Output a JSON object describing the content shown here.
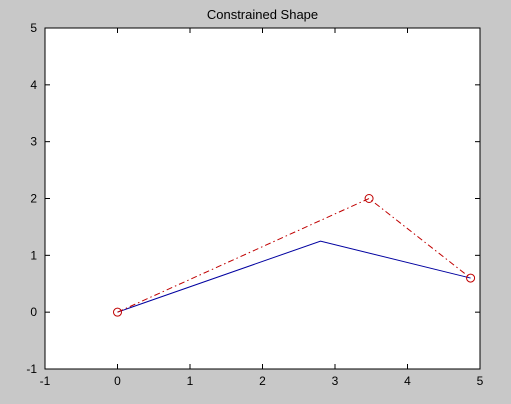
{
  "chart_data": {
    "type": "line",
    "title": "Constrained Shape",
    "xlabel": "",
    "ylabel": "",
    "xlim": [
      -1,
      5
    ],
    "ylim": [
      -1,
      5
    ],
    "xticks": [
      -1,
      0,
      1,
      2,
      3,
      4,
      5
    ],
    "yticks": [
      -1,
      0,
      1,
      2,
      3,
      4,
      5
    ],
    "grid": false,
    "legend": "none",
    "series": [
      {
        "style": "solid",
        "color": "#0000a0",
        "marker": "none",
        "x": [
          0,
          2.8,
          4.87
        ],
        "y": [
          0,
          1.25,
          0.6
        ]
      },
      {
        "style": "dash-dot",
        "color": "#c00000",
        "marker": "circle",
        "x": [
          0,
          3.47,
          4.87
        ],
        "y": [
          0,
          2.0,
          0.6
        ]
      }
    ]
  },
  "colors": {
    "figure_background": "#c8c8c8",
    "axes_background": "#ffffff"
  }
}
